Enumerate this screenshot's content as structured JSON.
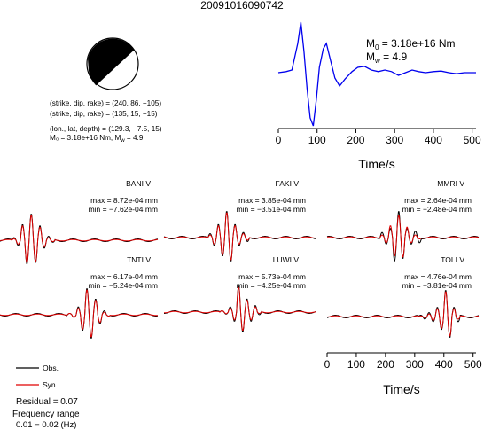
{
  "title": "20091016090742",
  "mechanism": {
    "plane1": "(strike, dip, rake) = (240, 86, −105)",
    "plane2": "(strike, dip, rake) = (135, 15, −15)",
    "location": "(lon., lat, depth) = (129.3, −7.5, 15)",
    "moment": "M₀ = 3.18e+16 Nm, M",
    "moment_sub": "w",
    "moment_tail": " = 4.9"
  },
  "stf": {
    "m0_label": "M",
    "m0_sub": "0",
    "m0_value": " = 3.18e+16 Nm",
    "mw_label": "M",
    "mw_sub": "w",
    "mw_value": " = 4.9",
    "xlabel": "Time/s"
  },
  "legend": {
    "obs": "Obs.",
    "syn": "Syn."
  },
  "residual": "Residual = 0.07",
  "freq_label": "Frequency range",
  "freq_value": "0.01 − 0.02 (Hz)",
  "colors": {
    "observed": "#000000",
    "synthetic": "#e00000",
    "stf_line": "#0000ee"
  },
  "chart_data": [
    {
      "type": "line",
      "name": "source-time-function",
      "xlim": [
        0,
        510
      ],
      "x_ticks": [
        0,
        100,
        200,
        300,
        400,
        500
      ],
      "xlabel": "Time/s",
      "series": [
        {
          "name": "",
          "points": [
            [
              0,
              0
            ],
            [
              20,
              0.02
            ],
            [
              35,
              0.05
            ],
            [
              50,
              0.55
            ],
            [
              58,
              0.95
            ],
            [
              66,
              0.4
            ],
            [
              74,
              -0.3
            ],
            [
              82,
              -0.85
            ],
            [
              90,
              -1.0
            ],
            [
              98,
              -0.5
            ],
            [
              106,
              0.1
            ],
            [
              116,
              0.45
            ],
            [
              124,
              0.55
            ],
            [
              134,
              0.25
            ],
            [
              146,
              -0.1
            ],
            [
              158,
              -0.25
            ],
            [
              172,
              -0.12
            ],
            [
              190,
              0.02
            ],
            [
              205,
              0.1
            ],
            [
              222,
              0.12
            ],
            [
              240,
              0.05
            ],
            [
              258,
              0.02
            ],
            [
              275,
              0.05
            ],
            [
              292,
              0.02
            ],
            [
              310,
              -0.05
            ],
            [
              328,
              0.0
            ],
            [
              345,
              0.05
            ],
            [
              362,
              0.02
            ],
            [
              380,
              0.0
            ],
            [
              400,
              0.02
            ],
            [
              420,
              0.03
            ],
            [
              440,
              0.0
            ],
            [
              460,
              -0.02
            ],
            [
              480,
              0.0
            ],
            [
              500,
              0.0
            ],
            [
              510,
              0.0
            ]
          ]
        }
      ]
    },
    {
      "type": "line",
      "name": "waveform-fit",
      "xlim": [
        0,
        510
      ],
      "x_ticks": [
        0,
        100,
        200,
        300,
        400,
        500
      ],
      "xlabel": "Time/s",
      "stations": [
        {
          "label": "BANI V",
          "max": "max = 8.72e-04 mm",
          "min": "min = −7.62e-04 mm",
          "peak_time": 150,
          "obs_amp": [
            0.1,
            -0.2,
            0.6,
            -0.9,
            1.0,
            -0.85,
            0.55,
            -0.3,
            0.15,
            -0.08
          ],
          "syn_amp": [
            0.05,
            -0.15,
            0.55,
            -0.85,
            0.95,
            -0.8,
            0.5,
            -0.25,
            0.1,
            -0.05
          ]
        },
        {
          "label": "FAKI V",
          "max": "max = 3.85e-04 mm",
          "min": "min = −3.51e-04 mm",
          "peak_time": 260,
          "obs_amp": [
            0.15,
            -0.3,
            0.5,
            -0.7,
            1.0,
            -0.9,
            0.5,
            -0.3,
            0.2,
            -0.15
          ],
          "syn_amp": [
            0.1,
            -0.25,
            0.45,
            -0.65,
            0.95,
            -0.85,
            0.45,
            -0.25,
            0.15,
            -0.1
          ]
        },
        {
          "label": "MMRI V",
          "max": "max = 2.64e-04 mm",
          "min": "min = −2.48e-04 mm",
          "peak_time": 290,
          "obs_amp": [
            0.2,
            -0.25,
            0.35,
            -0.9,
            1.0,
            -0.8,
            0.35,
            -0.25,
            0.25,
            -0.2
          ],
          "syn_amp": [
            0.1,
            -0.2,
            0.45,
            -0.7,
            0.85,
            -0.75,
            0.4,
            -0.2,
            0.1,
            -0.05
          ]
        },
        {
          "label": "TNTI V",
          "max": "max = 6.17e-04 mm",
          "min": "min = −5.24e-04 mm",
          "peak_time": 330,
          "obs_amp": [
            0.05,
            -0.1,
            0.3,
            -0.6,
            1.0,
            -0.9,
            0.6,
            -0.35,
            0.15,
            -0.05
          ],
          "syn_amp": [
            0.05,
            -0.1,
            0.25,
            -0.55,
            0.95,
            -0.85,
            0.55,
            -0.3,
            0.1,
            -0.05
          ]
        },
        {
          "label": "LUWI V",
          "max": "max = 5.73e-04 mm",
          "min": "min = −4.25e-04 mm",
          "peak_time": 300,
          "obs_amp": [
            0.05,
            -0.08,
            0.2,
            -0.35,
            1.0,
            -0.75,
            0.5,
            -0.35,
            0.25,
            -0.1
          ],
          "syn_amp": [
            0.05,
            -0.06,
            0.15,
            -0.3,
            0.95,
            -0.7,
            0.45,
            -0.3,
            0.2,
            -0.05
          ]
        },
        {
          "label": "TOLI V",
          "max": "max = 4.76e-04 mm",
          "min": "min = −3.81e-04 mm",
          "peak_time": 420,
          "obs_amp": [
            0.05,
            -0.1,
            0.15,
            -0.2,
            0.35,
            -0.5,
            1.0,
            -0.8,
            0.35,
            -0.2
          ],
          "syn_amp": [
            0.02,
            -0.05,
            0.1,
            -0.15,
            0.3,
            -0.45,
            0.95,
            -0.75,
            0.3,
            -0.1
          ]
        }
      ]
    }
  ]
}
